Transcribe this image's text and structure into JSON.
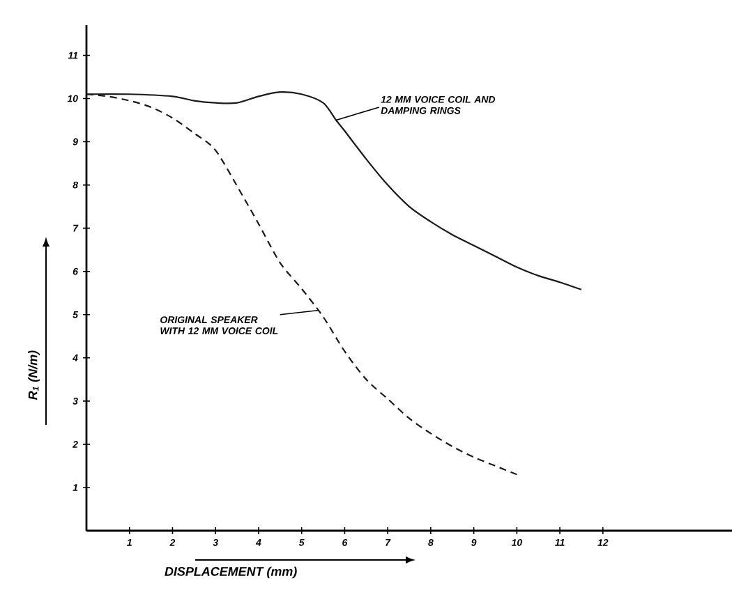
{
  "chart_data": {
    "type": "line",
    "xlabel": "DISPLACEMENT (mm)",
    "ylabel": "R$_{1}$ (N/m)",
    "xlim": [
      0,
      15
    ],
    "ylim": [
      0,
      11.7
    ],
    "xticks": [
      1,
      2,
      3,
      4,
      5,
      6,
      7,
      8,
      9,
      10,
      11,
      12
    ],
    "yticks": [
      1,
      2,
      3,
      4,
      5,
      6,
      7,
      8,
      9,
      10,
      11
    ],
    "grid": false,
    "series": [
      {
        "color": "#1a1a1a",
        "line_style": "solid",
        "x": [
          0,
          1,
          2,
          2.5,
          3,
          3.5,
          4,
          4.5,
          5,
          5.5,
          5.8,
          6,
          6.5,
          7,
          7.5,
          8,
          8.5,
          9,
          9.5,
          10,
          10.5,
          11,
          11.5
        ],
        "values": [
          10.1,
          10.1,
          10.05,
          9.95,
          9.9,
          9.9,
          10.05,
          10.15,
          10.1,
          9.9,
          9.5,
          9.25,
          8.6,
          8.0,
          7.5,
          7.15,
          6.85,
          6.6,
          6.35,
          6.1,
          5.9,
          5.75,
          5.58
        ]
      },
      {
        "color": "#1a1a1a",
        "line_style": "dashed",
        "x": [
          0,
          0.5,
          1,
          1.5,
          2,
          2.5,
          3,
          3.6,
          4,
          4.5,
          5,
          5.5,
          6,
          6.5,
          7,
          7.5,
          8,
          8.5,
          9,
          9.5,
          10
        ],
        "values": [
          10.1,
          10.05,
          9.95,
          9.8,
          9.55,
          9.2,
          8.8,
          7.8,
          7.1,
          6.2,
          5.6,
          4.95,
          4.15,
          3.5,
          3.05,
          2.6,
          2.25,
          1.95,
          1.7,
          1.5,
          1.3
        ]
      }
    ],
    "annotations": [
      {
        "text": "12 MM VOICE COIL AND DAMPING RINGS",
        "x": 5.8,
        "y": 9.5
      },
      {
        "text": "ORIGINAL SPEAKER WITH 12 MM VOICE COIL",
        "x": 5.4,
        "y": 5.1
      }
    ]
  }
}
